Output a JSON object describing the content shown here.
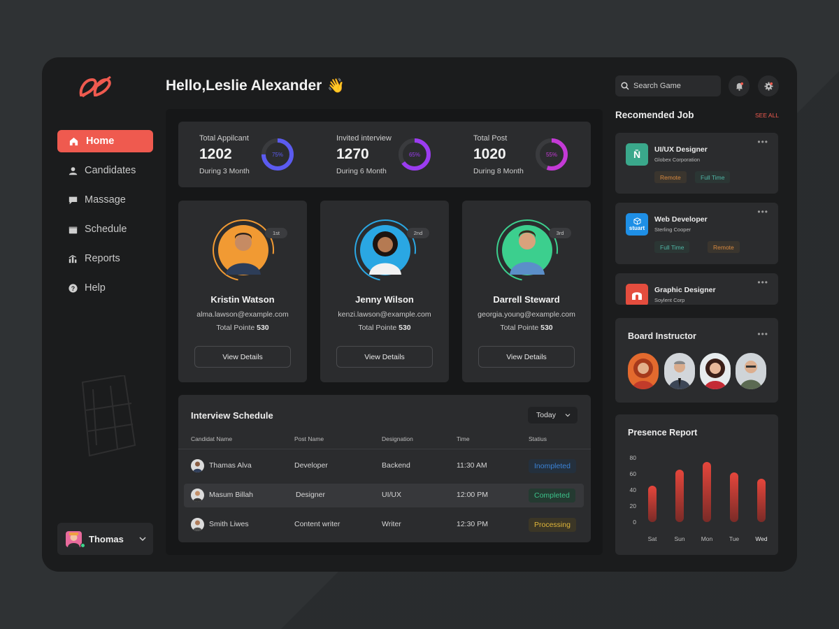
{
  "header": {
    "greeting": "Hello,Leslie Alexander",
    "wave": "👋",
    "search_placeholder": "Search Game"
  },
  "sidebar": {
    "items": [
      {
        "label": "Home",
        "icon": "home-icon",
        "active": true
      },
      {
        "label": "Candidates",
        "icon": "user-icon"
      },
      {
        "label": "Massage",
        "icon": "message-icon"
      },
      {
        "label": "Schedule",
        "icon": "calendar-icon"
      },
      {
        "label": "Reports",
        "icon": "chart-icon"
      },
      {
        "label": "Help",
        "icon": "help-icon"
      }
    ],
    "user": {
      "name": "Thomas"
    }
  },
  "stats": [
    {
      "label": "Total Appilcant",
      "value": "1202",
      "sub": "During 3 Month",
      "percent": 75,
      "percent_label": "75%",
      "color": "#5b5bf0"
    },
    {
      "label": "Invited interview",
      "value": "1270",
      "sub": "During 6 Month",
      "percent": 65,
      "percent_label": "65%",
      "color": "#9b3cf0"
    },
    {
      "label": "Total Post",
      "value": "1020",
      "sub": "During 8 Month",
      "percent": 55,
      "percent_label": "55%",
      "color": "#c43ad6"
    }
  ],
  "candidates": [
    {
      "name": "Kristin Watson",
      "email": "alma.lawson@example.com",
      "points_label": "Total Pointe",
      "points": "530",
      "rank": "1st",
      "button": "View Details",
      "ring_color": "#f19a33"
    },
    {
      "name": "Jenny Wilson",
      "email": "kenzi.lawson@example.com",
      "points_label": "Total Pointe",
      "points": "530",
      "rank": "2nd",
      "button": "View Details",
      "ring_color": "#2aa7e3"
    },
    {
      "name": "Darrell Steward",
      "email": "georgia.young@example.com",
      "points_label": "Total Pointe",
      "points": "530",
      "rank": "3rd",
      "button": "View Details",
      "ring_color": "#3ccf8e"
    }
  ],
  "schedule": {
    "title": "Interview Schedule",
    "filter": "Today",
    "columns": [
      "Candidat Name",
      "Post Name",
      "Designation",
      "Time",
      "Statius"
    ],
    "rows": [
      {
        "name": "Thamas Alva",
        "post": "Developer",
        "designation": "Backend",
        "time": "11:30 AM",
        "status": "Inompleted",
        "status_color": "#3b82d6",
        "status_bg": "#24303d"
      },
      {
        "name": "Masum Billah",
        "post": "Designer",
        "designation": "UI/UX",
        "time": "12:00 PM",
        "status": "Completed",
        "status_color": "#3cc28a",
        "status_bg": "#243a31"
      },
      {
        "name": "Smith Liwes",
        "post": "Content writer",
        "designation": "Writer",
        "time": "12:30 PM",
        "status": "Processing",
        "status_color": "#e0b63a",
        "status_bg": "#3b3626"
      }
    ]
  },
  "jobs": {
    "title": "Recomended Job",
    "see_all": "SEE ALL",
    "items": [
      {
        "title": "UI/UX Designer",
        "company": "Globex Corporation",
        "logo_text": "N̄",
        "logo_color": "#3aa88b",
        "tags": [
          "Remote",
          "Full Time"
        ]
      },
      {
        "title": "Web Developer",
        "company": "Sterling Cooper",
        "logo_text": "stuart",
        "logo_color": "#1e8fe6",
        "tags": [
          "Full Time",
          "Remote"
        ]
      },
      {
        "title": "Graphic Designer",
        "company": "Soylent Corp",
        "logo_text": "",
        "logo_color": "#e44d3e",
        "tags": []
      }
    ]
  },
  "board": {
    "title": "Board Instructor"
  },
  "presence": {
    "title": "Presence Report",
    "y_ticks": [
      "80",
      "60",
      "40",
      "20",
      "0"
    ]
  },
  "chart_data": {
    "type": "bar",
    "title": "Presence Report",
    "categories": [
      "Sat",
      "Sun",
      "Mon",
      "Tue",
      "Wed"
    ],
    "values": [
      45,
      65,
      75,
      62,
      54
    ],
    "ylim": [
      0,
      80
    ],
    "yticks": [
      0,
      20,
      40,
      60,
      80
    ],
    "color": "#e5463c",
    "highlight": "Wed"
  }
}
